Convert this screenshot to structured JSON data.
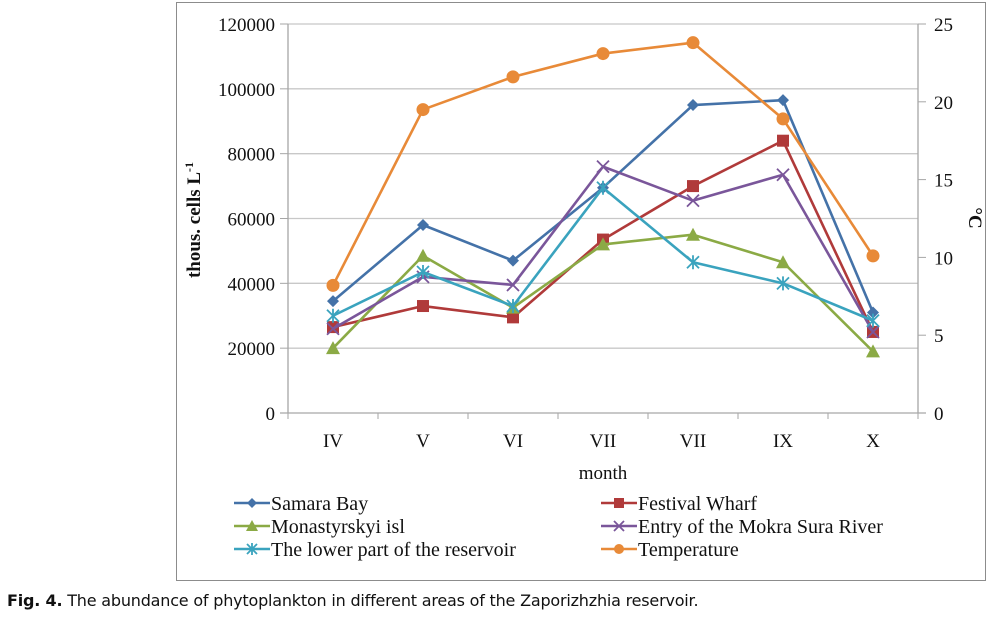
{
  "caption": {
    "label": "Fig. 4.",
    "text": " The abundance of phytoplankton in different areas of the Zaporizhzhia reservoir."
  },
  "chart_data": {
    "type": "line",
    "title": "",
    "xlabel": "month",
    "ylabel": "thous. cells L",
    "ylabel_superscript": "-1",
    "y2label": "°C",
    "categories": [
      "IV",
      "V",
      "VI",
      "VII",
      "VII",
      "IX",
      "X"
    ],
    "ylim": [
      0,
      120000
    ],
    "yticks": [
      0,
      20000,
      40000,
      60000,
      80000,
      100000,
      120000
    ],
    "y2lim": [
      0,
      25
    ],
    "y2ticks": [
      0,
      5,
      10,
      15,
      20,
      25
    ],
    "grid": true,
    "legend_position": "bottom",
    "series": [
      {
        "name": "Samara Bay",
        "axis": "left",
        "marker": "diamond",
        "color": "#4472A8",
        "values": [
          34500,
          58000,
          47000,
          69500,
          95000,
          96500,
          31000
        ]
      },
      {
        "name": "Festival Wharf",
        "axis": "left",
        "marker": "square",
        "color": "#B03A3A",
        "values": [
          26500,
          33000,
          29500,
          53500,
          70000,
          84000,
          25000
        ]
      },
      {
        "name": "Monastyrskyi isl",
        "axis": "left",
        "marker": "triangle",
        "color": "#8BAA45",
        "values": [
          20000,
          48500,
          32500,
          52000,
          55000,
          46500,
          19000
        ]
      },
      {
        "name": "Entry of the Mokra Sura River",
        "axis": "left",
        "marker": "x",
        "color": "#7A569A",
        "values": [
          26000,
          42000,
          39500,
          76000,
          65500,
          73500,
          25000
        ]
      },
      {
        "name": "The lower part of the reservoir",
        "axis": "left",
        "marker": "star",
        "color": "#3AA3BE",
        "values": [
          30000,
          43500,
          33000,
          69500,
          46500,
          40000,
          28500
        ]
      },
      {
        "name": "Temperature",
        "axis": "right",
        "marker": "circle",
        "color": "#E88A38",
        "values": [
          8.2,
          19.5,
          21.6,
          23.1,
          23.8,
          18.9,
          10.1
        ]
      }
    ]
  }
}
